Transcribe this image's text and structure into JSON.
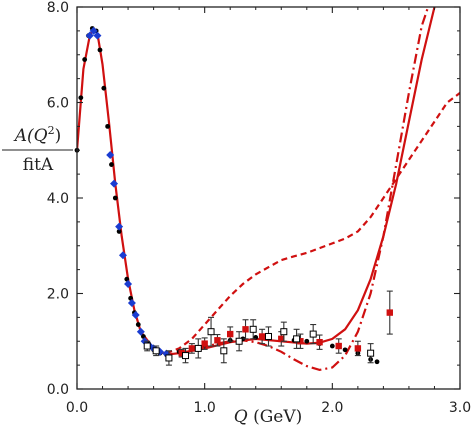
{
  "chart_data": {
    "type": "scatter",
    "xlabel_symbol": "Q",
    "xlabel_unit": "(GeV)",
    "ylabel_num_prefix": "A(Q",
    "ylabel_num_sup": "2",
    "ylabel_num_suffix": ")",
    "ylabel_den": "fitA",
    "xlim": [
      0,
      3
    ],
    "ylim": [
      0,
      8
    ],
    "x_ticks": [
      "0.0",
      "1.0",
      "2.0",
      "3.0"
    ],
    "y_ticks": [
      "0.0",
      "2.0",
      "4.0",
      "6.0",
      "8.0"
    ],
    "grid": false,
    "series": [
      {
        "marker": "dot",
        "color": "#000000",
        "x": [
          0.0,
          0.03,
          0.06,
          0.09,
          0.12,
          0.15,
          0.18,
          0.21,
          0.24,
          0.27,
          0.3,
          0.33,
          0.36,
          0.39,
          0.42,
          0.45,
          0.48,
          0.52,
          0.56,
          0.6,
          0.65,
          0.7,
          0.8,
          0.9,
          1.0,
          1.1,
          1.2,
          1.3,
          1.4,
          1.5,
          1.6,
          1.7,
          1.8,
          1.9,
          2.0,
          2.1,
          2.2,
          2.3,
          2.35
        ],
        "y": [
          5.0,
          6.1,
          6.9,
          7.4,
          7.55,
          7.5,
          7.1,
          6.3,
          5.5,
          4.7,
          4.0,
          3.3,
          2.8,
          2.3,
          1.9,
          1.6,
          1.35,
          1.1,
          0.95,
          0.82,
          0.75,
          0.72,
          0.78,
          0.85,
          0.92,
          1.0,
          1.02,
          1.05,
          1.08,
          1.07,
          1.05,
          1.02,
          1.0,
          0.95,
          0.9,
          0.82,
          0.75,
          0.62,
          0.57
        ]
      },
      {
        "marker": "diamond",
        "color": "#1a3cd1",
        "x": [
          0.1,
          0.13,
          0.16,
          0.26,
          0.29,
          0.33,
          0.36,
          0.4,
          0.43,
          0.46,
          0.5,
          0.53,
          0.57,
          0.6,
          0.65,
          0.7
        ],
        "y": [
          7.4,
          7.5,
          7.4,
          4.9,
          4.3,
          3.4,
          2.8,
          2.2,
          1.8,
          1.55,
          1.2,
          1.0,
          0.9,
          0.85,
          0.78,
          0.74
        ]
      },
      {
        "marker": "square",
        "color": "#d01010",
        "err": true,
        "x": [
          0.82,
          0.9,
          1.0,
          1.1,
          1.2,
          1.32,
          1.45,
          1.6,
          1.75,
          1.9,
          2.05,
          2.2,
          2.45
        ],
        "y": [
          0.75,
          0.85,
          0.95,
          1.02,
          1.15,
          1.25,
          1.1,
          1.05,
          1.0,
          0.98,
          0.9,
          0.85,
          1.6
        ],
        "yerr": [
          0.08,
          0.1,
          0.12,
          0.12,
          0.15,
          0.2,
          0.15,
          0.15,
          0.15,
          0.15,
          0.15,
          0.15,
          0.45
        ]
      },
      {
        "marker": "open-square",
        "color": "#000000",
        "err": true,
        "x": [
          0.55,
          0.62,
          0.72,
          0.85,
          0.95,
          1.05,
          1.15,
          1.27,
          1.38,
          1.5,
          1.62,
          1.72,
          1.85,
          2.3
        ],
        "y": [
          0.9,
          0.8,
          0.65,
          0.7,
          0.85,
          1.2,
          0.8,
          1.0,
          1.25,
          1.1,
          1.2,
          1.05,
          1.15,
          0.75
        ],
        "yerr": [
          0.1,
          0.1,
          0.15,
          0.15,
          0.2,
          0.3,
          0.25,
          0.2,
          0.2,
          0.2,
          0.2,
          0.2,
          0.2,
          0.2
        ]
      }
    ],
    "curves": [
      {
        "style": "solid",
        "color": "#d01010",
        "x": [
          0.0,
          0.05,
          0.1,
          0.13,
          0.16,
          0.2,
          0.25,
          0.3,
          0.35,
          0.4,
          0.45,
          0.5,
          0.6,
          0.7,
          0.8,
          1.0,
          1.2,
          1.4,
          1.6,
          1.8,
          1.9,
          2.0,
          2.1,
          2.2,
          2.3,
          2.4,
          2.5,
          2.6,
          2.7,
          2.8
        ],
        "y": [
          5.0,
          6.7,
          7.4,
          7.55,
          7.45,
          6.8,
          5.6,
          4.3,
          3.2,
          2.3,
          1.65,
          1.2,
          0.85,
          0.72,
          0.75,
          0.85,
          0.98,
          1.05,
          1.0,
          0.95,
          0.97,
          1.05,
          1.25,
          1.65,
          2.3,
          3.2,
          4.3,
          5.6,
          6.9,
          8.0
        ]
      },
      {
        "style": "dashed",
        "color": "#d01010",
        "x": [
          0.7,
          0.8,
          0.9,
          1.0,
          1.1,
          1.2,
          1.3,
          1.4,
          1.5,
          1.6,
          1.7,
          1.8,
          1.9,
          2.0,
          2.1,
          2.2,
          2.3,
          2.4,
          2.5,
          2.6,
          2.7,
          2.8,
          2.9,
          3.0
        ],
        "y": [
          0.75,
          0.85,
          1.05,
          1.35,
          1.65,
          1.95,
          2.2,
          2.4,
          2.55,
          2.7,
          2.78,
          2.85,
          2.95,
          3.05,
          3.15,
          3.3,
          3.6,
          4.0,
          4.4,
          4.8,
          5.2,
          5.6,
          6.0,
          6.2
        ]
      },
      {
        "style": "dashdot",
        "color": "#d01010",
        "x": [
          0.8,
          0.9,
          1.0,
          1.1,
          1.2,
          1.3,
          1.4,
          1.5,
          1.6,
          1.7,
          1.8,
          1.9,
          2.0,
          2.1,
          2.2,
          2.3,
          2.4,
          2.5,
          2.6,
          2.7,
          2.75
        ],
        "y": [
          0.75,
          0.8,
          0.88,
          0.95,
          1.0,
          1.02,
          0.98,
          0.9,
          0.78,
          0.62,
          0.48,
          0.4,
          0.45,
          0.7,
          1.2,
          2.0,
          3.2,
          4.7,
          6.2,
          7.6,
          8.0
        ]
      }
    ]
  }
}
